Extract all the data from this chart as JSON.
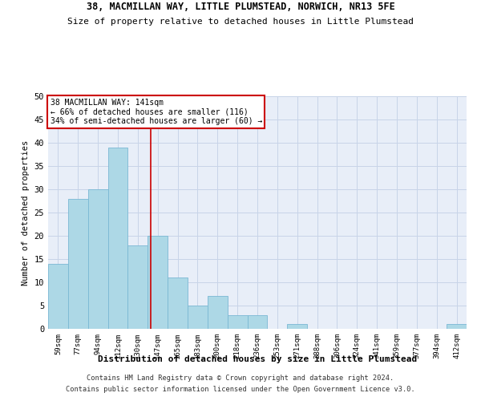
{
  "title_line1": "38, MACMILLAN WAY, LITTLE PLUMSTEAD, NORWICH, NR13 5FE",
  "title_line2": "Size of property relative to detached houses in Little Plumstead",
  "xlabel": "Distribution of detached houses by size in Little Plumstead",
  "ylabel": "Number of detached properties",
  "categories": [
    "59sqm",
    "77sqm",
    "94sqm",
    "112sqm",
    "130sqm",
    "147sqm",
    "165sqm",
    "183sqm",
    "200sqm",
    "218sqm",
    "236sqm",
    "253sqm",
    "271sqm",
    "288sqm",
    "306sqm",
    "324sqm",
    "341sqm",
    "359sqm",
    "377sqm",
    "394sqm",
    "412sqm"
  ],
  "values": [
    14,
    28,
    30,
    39,
    18,
    20,
    11,
    5,
    7,
    3,
    3,
    0,
    1,
    0,
    0,
    0,
    0,
    0,
    0,
    0,
    1
  ],
  "bar_color": "#add8e6",
  "bar_edge_color": "#7ab8d4",
  "property_line_x": 4.65,
  "annotation_text_line1": "38 MACMILLAN WAY: 141sqm",
  "annotation_text_line2": "← 66% of detached houses are smaller (116)",
  "annotation_text_line3": "34% of semi-detached houses are larger (60) →",
  "annotation_box_color": "#ffffff",
  "annotation_box_edge": "#cc0000",
  "vline_color": "#cc0000",
  "ylim": [
    0,
    50
  ],
  "yticks": [
    0,
    5,
    10,
    15,
    20,
    25,
    30,
    35,
    40,
    45,
    50
  ],
  "grid_color": "#c8d4e8",
  "background_color": "#e8eef8",
  "footer_line1": "Contains HM Land Registry data © Crown copyright and database right 2024.",
  "footer_line2": "Contains public sector information licensed under the Open Government Licence v3.0."
}
